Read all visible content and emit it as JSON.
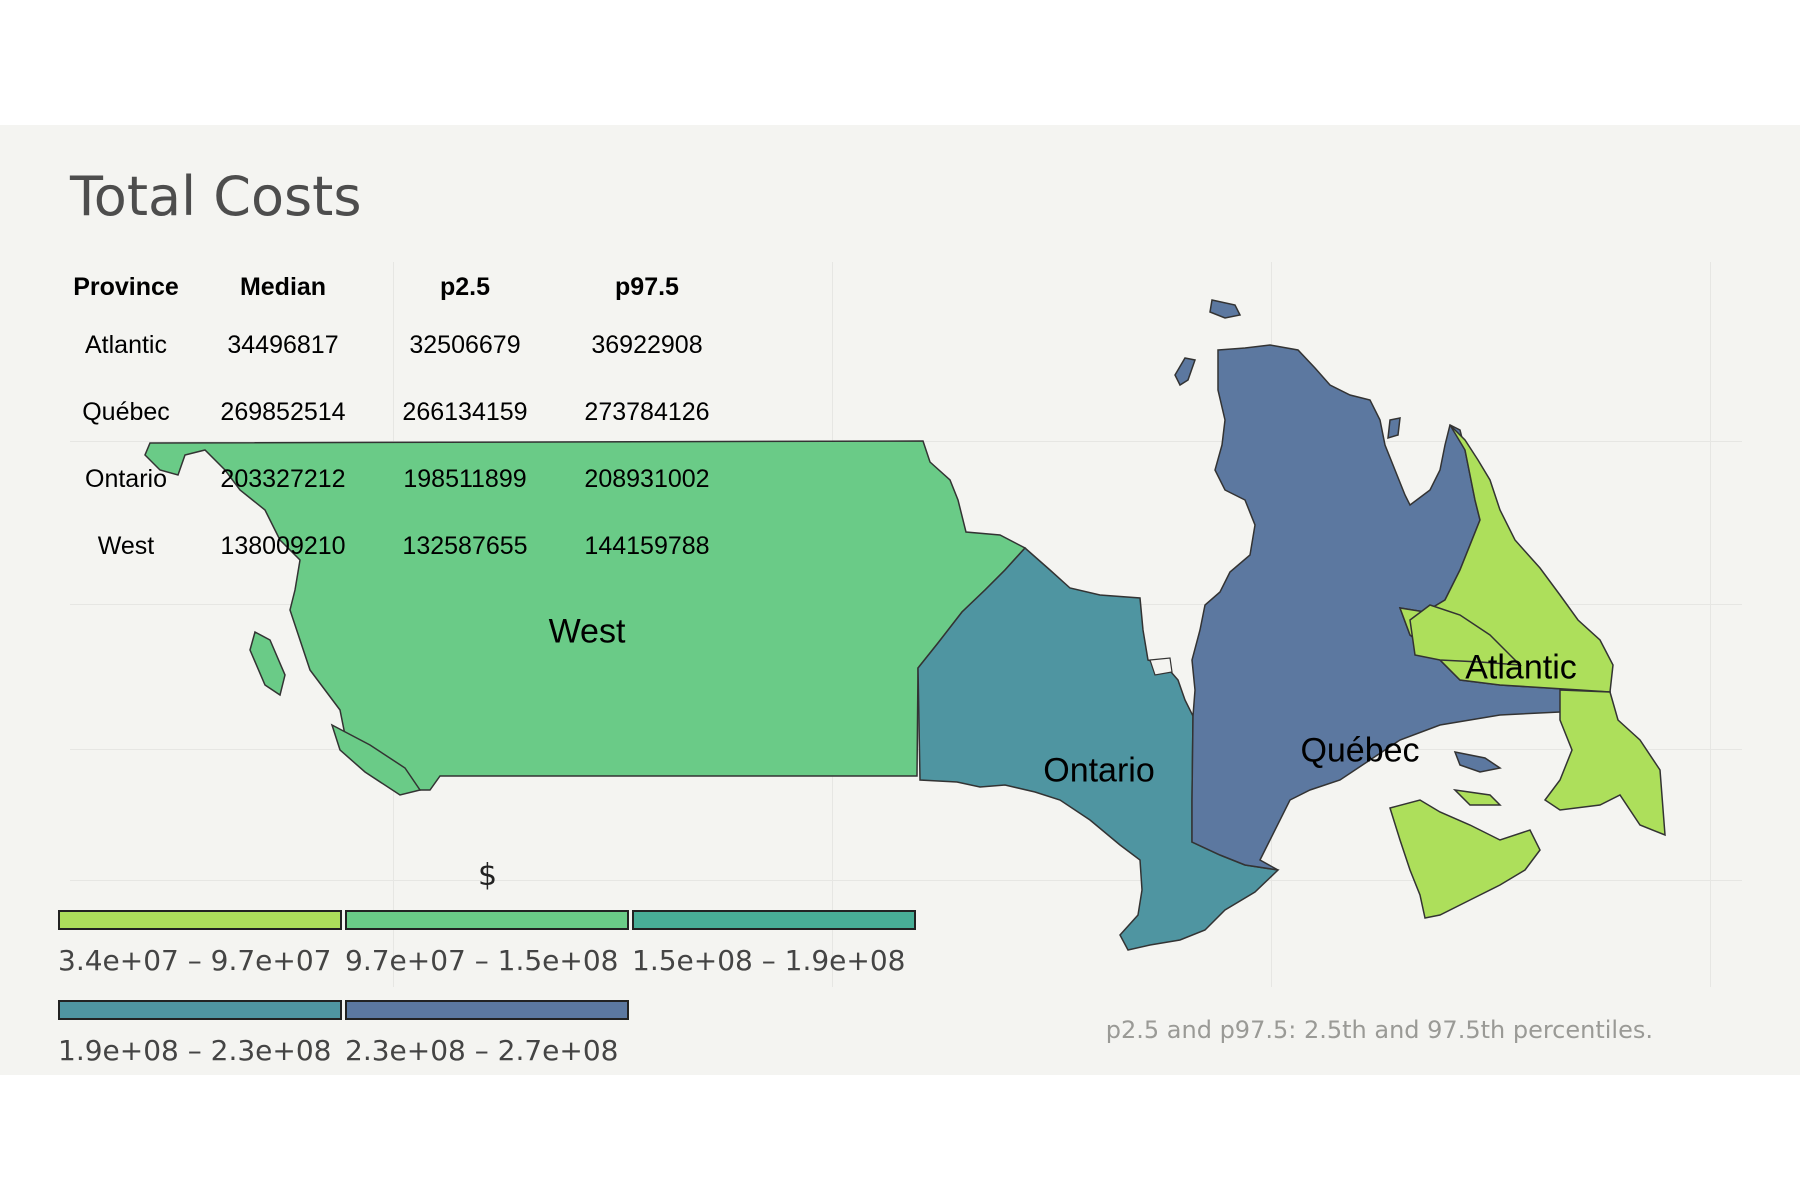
{
  "title": "Total Costs",
  "table": {
    "headers": [
      "Province",
      "Median",
      "p2.5",
      "p97.5"
    ],
    "rows": [
      [
        "Atlantic",
        "34496817",
        "32506679",
        "36922908"
      ],
      [
        "Québec",
        "269852514",
        "266134159",
        "273784126"
      ],
      [
        "Ontario",
        "203327212",
        "198511899",
        "208931002"
      ],
      [
        "West",
        "138009210",
        "132587655",
        "144159788"
      ]
    ]
  },
  "regions": [
    {
      "name": "West",
      "color": "#6acb87"
    },
    {
      "name": "Ontario",
      "color": "#4f95a1"
    },
    {
      "name": "Québec",
      "color": "#5c78a0"
    },
    {
      "name": "Atlantic",
      "color": "#addf5b"
    }
  ],
  "legend": {
    "title": "$",
    "items": [
      {
        "label": "3.4e+07 – 9.7e+07",
        "color": "#addf5b"
      },
      {
        "label": "9.7e+07 – 1.5e+08",
        "color": "#6acb87"
      },
      {
        "label": "1.5e+08 – 1.9e+08",
        "color": "#48ae96"
      },
      {
        "label": "1.9e+08 – 2.3e+08",
        "color": "#4f95a1"
      },
      {
        "label": "2.3e+08 – 2.7e+08",
        "color": "#5c78a0"
      }
    ]
  },
  "caption": "p2.5 and p97.5: 2.5th and 97.5th percentiles."
}
